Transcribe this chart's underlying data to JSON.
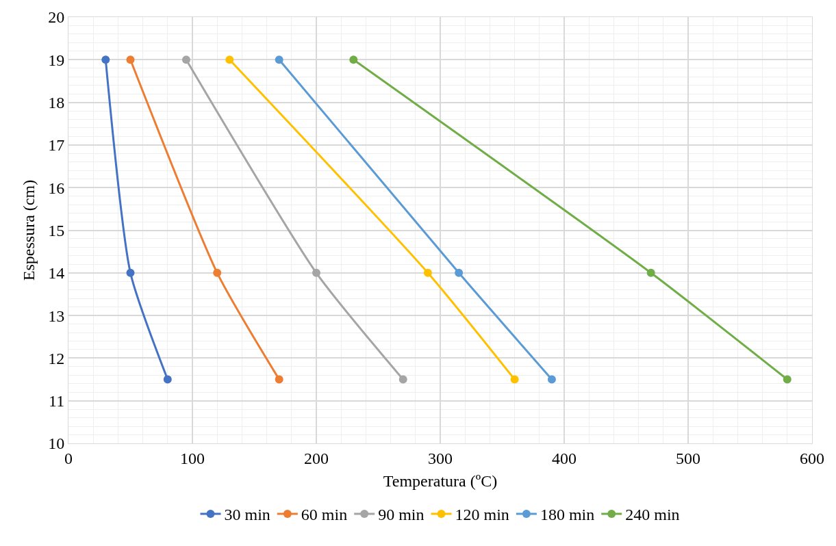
{
  "chart_data": {
    "type": "line",
    "xlabel": "Temperatura (ºC)",
    "ylabel": "Espessura (cm)",
    "xlim": [
      0,
      600
    ],
    "xticks": [
      0,
      100,
      200,
      300,
      400,
      500,
      600
    ],
    "ylim": [
      10,
      20
    ],
    "yticks": [
      10,
      11,
      12,
      13,
      14,
      15,
      16,
      17,
      18,
      19,
      20
    ],
    "grid": true,
    "legend": "bottom",
    "marker": "circle",
    "line_style": "solid",
    "series": [
      {
        "name": "30 min",
        "color": "#4472c4",
        "x": [
          30,
          50,
          80
        ],
        "values": [
          19,
          14,
          11.5
        ]
      },
      {
        "name": "60 min",
        "color": "#ed7d31",
        "x": [
          50,
          120,
          170
        ],
        "values": [
          19,
          14,
          11.5
        ]
      },
      {
        "name": "90 min",
        "color": "#a5a5a5",
        "x": [
          95,
          200,
          270
        ],
        "values": [
          19,
          14,
          11.5
        ]
      },
      {
        "name": "120 min",
        "color": "#ffc000",
        "x": [
          130,
          290,
          360
        ],
        "values": [
          19,
          14,
          11.5
        ]
      },
      {
        "name": "180 min",
        "color": "#5b9bd5",
        "x": [
          170,
          315,
          390
        ],
        "values": [
          19,
          14,
          11.5
        ]
      },
      {
        "name": "240 min",
        "color": "#70ad47",
        "x": [
          230,
          470,
          580
        ],
        "values": [
          19,
          14,
          11.5
        ]
      }
    ]
  }
}
